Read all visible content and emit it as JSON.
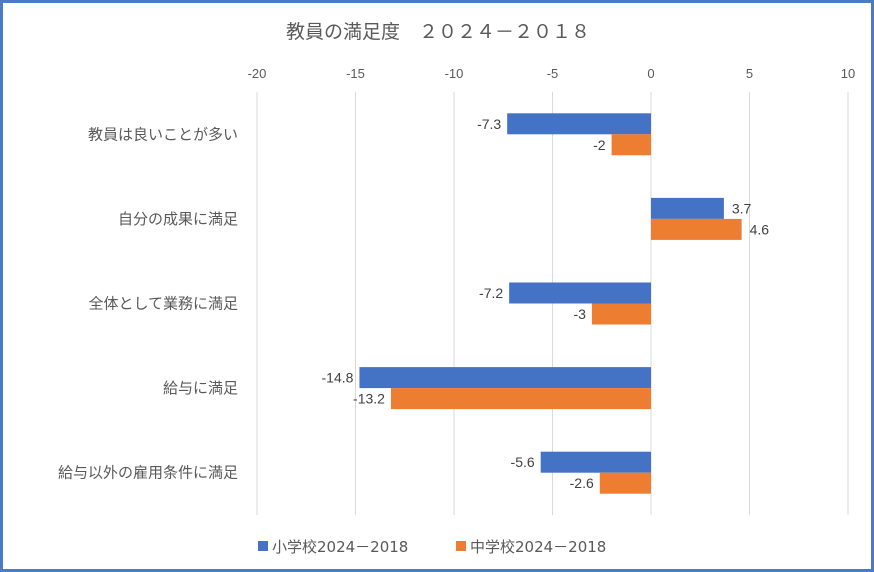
{
  "chart_data": {
    "type": "bar",
    "orientation": "horizontal",
    "title": "教員の満足度　２０２４－２０１８",
    "categories": [
      "教員は良いことが多い",
      "自分の成果に満足",
      "全体として業務に満足",
      "給与に満足",
      "給与以外の雇用条件に満足"
    ],
    "series": [
      {
        "name": "小学校2024－2018",
        "color": "#4472c4",
        "values": [
          -7.3,
          3.7,
          -7.2,
          -14.8,
          -5.6
        ],
        "labels": [
          "-7.3",
          "3.7",
          "-7.2",
          "-14.8",
          "-5.6"
        ]
      },
      {
        "name": "中学校2024－2018",
        "color": "#ed7d31",
        "values": [
          -2,
          4.6,
          -3,
          -13.2,
          -2.6
        ],
        "labels": [
          "-2",
          "4.6",
          "-3",
          "-13.2",
          "-2.6"
        ]
      }
    ],
    "xlim": [
      -20,
      10
    ],
    "xticks": [
      "-20",
      "-15",
      "-10",
      "-5",
      "0",
      "5",
      "10"
    ],
    "xtick_values": [
      -20,
      -15,
      -10,
      -5,
      0,
      5,
      10
    ],
    "grid": true,
    "legend_position": "bottom",
    "xlabel": "",
    "ylabel": ""
  }
}
